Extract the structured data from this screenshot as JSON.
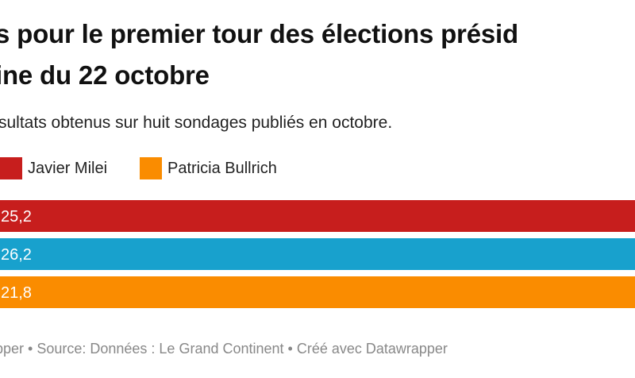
{
  "title": {
    "line1": "s pour le premier tour des élections présid",
    "line2": "ine du 22 octobre"
  },
  "subtitle": "sultats obtenus sur huit sondages publiés en octobre.",
  "legend": [
    {
      "label": "Javier Milei",
      "color": "#c71e1d"
    },
    {
      "label": "Patricia Bullrich",
      "color": "#fa8c00"
    }
  ],
  "footer": "pper • Source: Données : Le Grand Continent • Créé avec Datawrapper",
  "chart_data": {
    "type": "bar",
    "orientation": "horizontal",
    "series": [
      {
        "name": "Javier Milei",
        "value": 25.2,
        "label": "25,2",
        "color": "#c71e1d"
      },
      {
        "name": "",
        "value": 26.2,
        "label": "26,2",
        "color": "#18a1cd"
      },
      {
        "name": "Patricia Bullrich",
        "value": 21.8,
        "label": "21,8",
        "color": "#fa8c00"
      }
    ],
    "legend_position": "top-left",
    "grid": false
  }
}
